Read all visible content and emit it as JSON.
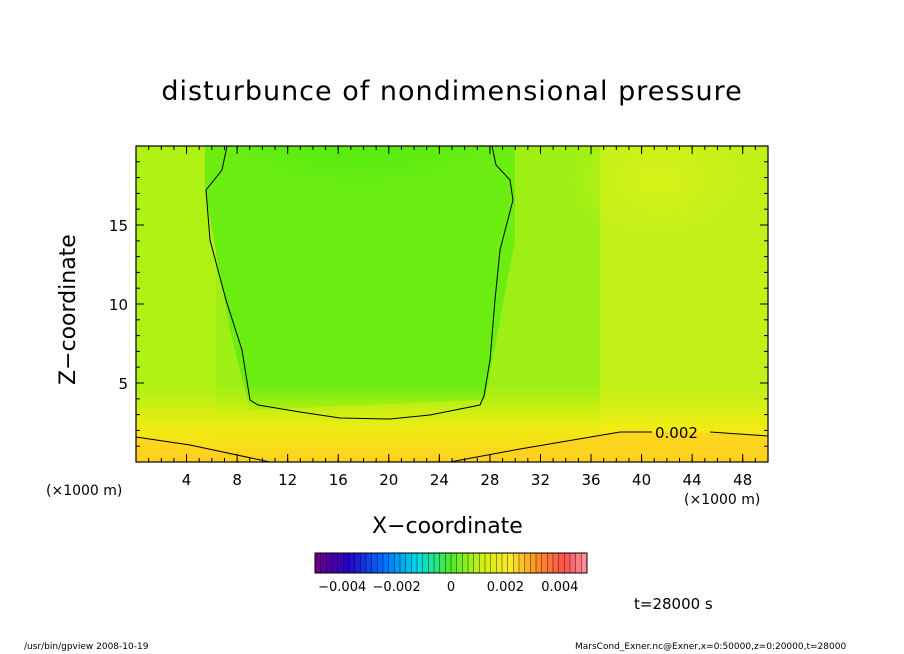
{
  "chart_data": {
    "type": "heatmap",
    "title": "disturbunce of nondimensional pressure",
    "xlabel": "X−coordinate",
    "ylabel": "Z−coordinate",
    "x_unit": "(×1000 m)",
    "xlim": [
      0,
      50
    ],
    "ylim": [
      0,
      20
    ],
    "x_ticks": [
      4,
      8,
      12,
      16,
      20,
      24,
      28,
      32,
      36,
      40,
      44,
      48
    ],
    "y_ticks": [
      5,
      10,
      15
    ],
    "colorbar": {
      "min": -0.005,
      "max": 0.005,
      "tick_values": [
        -0.004,
        -0.002,
        0,
        0.002,
        0.004
      ],
      "tick_labels": [
        "−0.004",
        "−0.002",
        "0",
        "0.002",
        "0.004"
      ]
    },
    "contour_labels": [
      {
        "value": 0.002,
        "text": "0.002"
      }
    ],
    "time": "t=28000 s"
  },
  "footer": {
    "left": "/usr/bin/gpview   2008-10-19",
    "right": "MarsCond_Exner.nc@Exner,x=0:50000,z=0:20000,t=28000"
  },
  "colors": {
    "bg": "#ffffff",
    "axis": "#000000"
  }
}
